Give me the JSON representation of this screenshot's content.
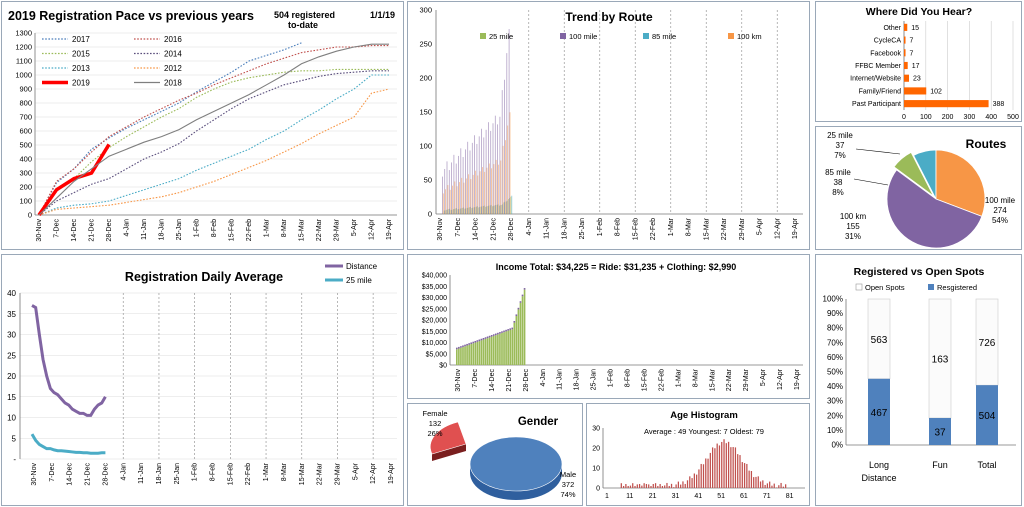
{
  "colors": {
    "y2017": "#4a7ebb",
    "y2016": "#c0504d",
    "y2015": "#9bbb59",
    "y2014": "#5a4e7c",
    "y2013": "#4bacc6",
    "y2012": "#f79646",
    "y2019": "#ff0000",
    "y2018": "#7f7f7f",
    "routes25": "#9bbb59",
    "routes100": "#8064a2",
    "routes85": "#4bacc6",
    "routes100k": "#f79646",
    "orange": "#ff6600",
    "purple": "#8064a2",
    "teal": "#4bacc6",
    "green": "#9bbb59",
    "blue": "#4f81bd",
    "red": "#e05050",
    "hist": "#c0504d"
  },
  "date_ticks": [
    "30-Nov",
    "7-Dec",
    "14-Dec",
    "21-Dec",
    "28-Dec",
    "4-Jan",
    "11-Jan",
    "18-Jan",
    "25-Jan",
    "1-Feb",
    "8-Feb",
    "15-Feb",
    "22-Feb",
    "1-Mar",
    "8-Mar",
    "15-Mar",
    "22-Mar",
    "29-Mar",
    "5-Apr",
    "12-Apr",
    "19-Apr"
  ],
  "pace": {
    "title": "2019 Registration Pace vs previous years",
    "note": "504 registered to-date",
    "note1": "504 registered",
    "note2": "to-date",
    "date": "1/1/19",
    "legend": [
      [
        "2017",
        "2016"
      ],
      [
        "2015",
        "2014"
      ],
      [
        "2013",
        "2012"
      ],
      [
        "2019",
        "2018"
      ]
    ],
    "yticks": [
      "0",
      "100",
      "200",
      "300",
      "400",
      "500",
      "600",
      "700",
      "800",
      "900",
      "1000",
      "1100",
      "1200",
      "1300"
    ]
  },
  "trend": {
    "title": "Trend by Route",
    "yticks": [
      "0",
      "50",
      "100",
      "150",
      "200",
      "250",
      "300"
    ],
    "legend": [
      "25 mile",
      "100 mile",
      "85 mile",
      "100 km"
    ]
  },
  "hear": {
    "title": "Where Did You Hear?",
    "categories": [
      "Other",
      "CycleCA",
      "Facebook",
      "FFBC Member",
      "Internet/Website",
      "Family/Friend",
      "Past Participant"
    ],
    "values": [
      15,
      7,
      7,
      17,
      23,
      102,
      388
    ],
    "xticks": [
      "0",
      "100",
      "200",
      "300",
      "400",
      "500"
    ]
  },
  "routes": {
    "title": "Routes",
    "labels": [
      {
        "name": "25 mile",
        "count": "37",
        "pct": "7%"
      },
      {
        "name": "85 mile",
        "count": "38",
        "pct": "8%"
      },
      {
        "name": "100 km",
        "count": "155",
        "pct": "31%"
      },
      {
        "name": "100 mile",
        "count": "274",
        "pct": "54%"
      }
    ]
  },
  "daily": {
    "title": "Registration Daily Average",
    "yticks": [
      "-",
      "5",
      "10",
      "15",
      "20",
      "25",
      "30",
      "35",
      "40"
    ],
    "legend": [
      "Distance",
      "25 mile"
    ]
  },
  "income": {
    "title": "Income Total: $34,225  =  Ride: $31,235 +  Clothing: $2,990",
    "yticks": [
      "$0",
      "$5,000",
      "$10,000",
      "$15,000",
      "$20,000",
      "$25,000",
      "$30,000",
      "$35,000",
      "$40,000"
    ]
  },
  "gender": {
    "title": "Gender",
    "female_label": "Female",
    "female_count": "132",
    "female_pct": "26%",
    "male_label": "Male",
    "male_count": "372",
    "male_pct": "74%"
  },
  "age": {
    "title": "Age Histogram",
    "stats": "Average : 49     Youngest: 7     Oldest: 79",
    "yticks": [
      "0",
      "10",
      "20",
      "30"
    ],
    "xticks": [
      "1",
      "11",
      "21",
      "31",
      "41",
      "51",
      "61",
      "71",
      "81"
    ]
  },
  "spots": {
    "title": "Registered vs Open Spots",
    "legend": [
      "Open Spots",
      "Resgistered"
    ],
    "yticks": [
      "0%",
      "10%",
      "20%",
      "30%",
      "40%",
      "50%",
      "60%",
      "70%",
      "80%",
      "90%",
      "100%"
    ],
    "categories": [
      "Long Distance",
      "Fun",
      "Total"
    ],
    "cat1a": "Long",
    "cat1b": "Distance",
    "open": [
      "563",
      "163",
      "726"
    ],
    "reg": [
      "467",
      "37",
      "504"
    ]
  },
  "chart_data": [
    {
      "type": "line",
      "title": "2019 Registration Pace vs previous years",
      "ylim": [
        0,
        1300
      ],
      "x": [
        "30-Nov",
        "7-Dec",
        "14-Dec",
        "21-Dec",
        "28-Dec",
        "4-Jan",
        "11-Jan",
        "18-Jan",
        "25-Jan",
        "1-Feb",
        "8-Feb",
        "15-Feb",
        "22-Feb",
        "1-Mar",
        "8-Mar",
        "15-Mar",
        "22-Mar",
        "29-Mar",
        "5-Apr",
        "12-Apr",
        "19-Apr"
      ],
      "series": [
        {
          "name": "2017",
          "values": [
            0,
            230,
            330,
            470,
            550,
            620,
            680,
            740,
            800,
            880,
            950,
            1020,
            1100,
            1140,
            1180,
            1230,
            null,
            null,
            null,
            null,
            null
          ]
        },
        {
          "name": "2016",
          "values": [
            0,
            240,
            330,
            450,
            560,
            630,
            700,
            760,
            820,
            870,
            930,
            980,
            1030,
            1080,
            1120,
            1160,
            1180,
            1200,
            1200,
            1210,
            1210
          ]
        },
        {
          "name": "2015",
          "values": [
            0,
            180,
            260,
            380,
            480,
            560,
            630,
            700,
            760,
            840,
            900,
            950,
            980,
            1000,
            1020,
            1030,
            1030,
            1040,
            1040,
            1040,
            1040
          ]
        },
        {
          "name": "2014",
          "values": [
            0,
            100,
            160,
            220,
            260,
            330,
            400,
            450,
            510,
            600,
            680,
            760,
            830,
            880,
            930,
            960,
            990,
            1010,
            1020,
            1030,
            1030
          ]
        },
        {
          "name": "2013",
          "values": [
            0,
            50,
            70,
            80,
            100,
            140,
            180,
            220,
            260,
            320,
            370,
            420,
            470,
            540,
            600,
            680,
            750,
            830,
            900,
            1000,
            1000
          ]
        },
        {
          "name": "2012",
          "values": [
            0,
            40,
            50,
            60,
            70,
            90,
            110,
            130,
            160,
            200,
            240,
            290,
            340,
            390,
            450,
            510,
            580,
            640,
            700,
            870,
            900
          ]
        },
        {
          "name": "2019",
          "values": [
            0,
            180,
            260,
            300,
            504,
            null,
            null,
            null,
            null,
            null,
            null,
            null,
            null,
            null,
            null,
            null,
            null,
            null,
            null,
            null,
            null
          ]
        },
        {
          "name": "2018",
          "values": [
            0,
            120,
            240,
            330,
            420,
            470,
            520,
            560,
            610,
            680,
            740,
            800,
            860,
            930,
            1000,
            1080,
            1130,
            1170,
            1200,
            1220,
            1220
          ]
        }
      ]
    },
    {
      "type": "bar",
      "title": "Trend by Route",
      "ylim": [
        0,
        300
      ],
      "series": [
        {
          "name": "25 mile"
        },
        {
          "name": "100 mile"
        },
        {
          "name": "85 mile"
        },
        {
          "name": "100 km"
        }
      ]
    },
    {
      "type": "bar",
      "title": "Where Did You Hear?",
      "categories": [
        "Other",
        "CycleCA",
        "Facebook",
        "FFBC Member",
        "Internet/Website",
        "Family/Friend",
        "Past Participant"
      ],
      "values": [
        15,
        7,
        7,
        17,
        23,
        102,
        388
      ],
      "xlim": [
        0,
        500
      ]
    },
    {
      "type": "pie",
      "title": "Routes",
      "categories": [
        "25 mile",
        "85 mile",
        "100 km",
        "100 mile"
      ],
      "values": [
        37,
        38,
        155,
        274
      ]
    },
    {
      "type": "line",
      "title": "Registration Daily Average",
      "ylim": [
        0,
        40
      ],
      "series": [
        {
          "name": "Distance",
          "values": [
            37,
            36.5,
            30,
            24,
            20,
            17,
            16,
            15.5,
            14.5,
            13.5,
            13,
            12,
            11.5,
            11,
            11,
            10.5,
            10.5,
            12,
            13,
            13.5,
            15
          ]
        },
        {
          "name": "25 mile",
          "values": [
            6,
            4.5,
            3.5,
            3,
            2.5,
            2.5,
            2.2,
            2,
            2,
            1.9,
            1.8,
            1.7,
            1.6,
            1.6,
            1.5,
            1.5,
            1.4,
            1.4,
            1.4,
            1.5,
            1.5
          ]
        }
      ]
    },
    {
      "type": "area",
      "title": "Income Total: $34,225  =  Ride: $31,235 +  Clothing: $2,990",
      "ylim": [
        0,
        40000
      ]
    },
    {
      "type": "pie",
      "title": "Gender",
      "categories": [
        "Female",
        "Male"
      ],
      "values": [
        132,
        372
      ]
    },
    {
      "type": "bar",
      "title": "Age Histogram",
      "ylim": [
        0,
        30
      ]
    },
    {
      "type": "bar",
      "title": "Registered vs Open Spots",
      "categories": [
        "Long Distance",
        "Fun",
        "Total"
      ],
      "series": [
        {
          "name": "Resgistered",
          "values": [
            467,
            37,
            504
          ]
        },
        {
          "name": "Open Spots",
          "values": [
            563,
            163,
            726
          ]
        }
      ],
      "ylim": [
        0,
        1
      ]
    }
  ]
}
